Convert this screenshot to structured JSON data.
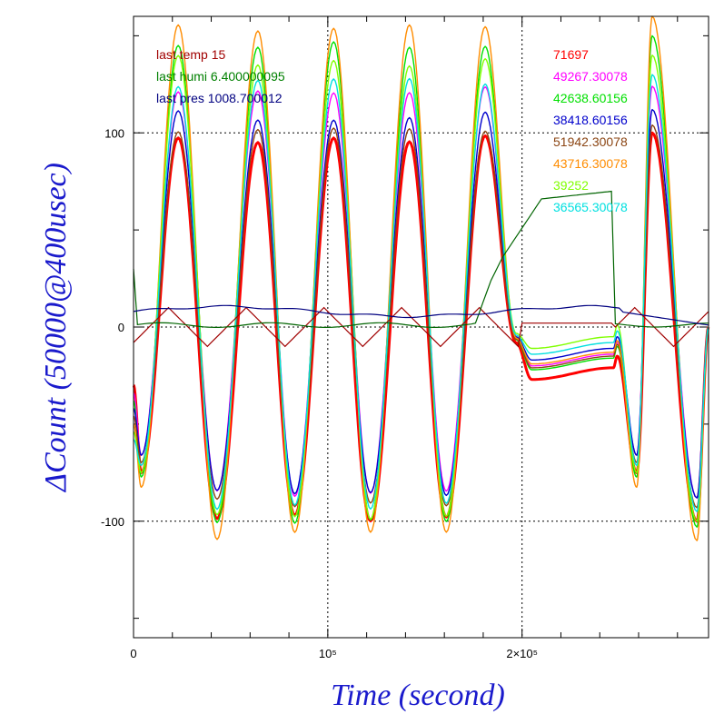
{
  "chart_data": {
    "type": "line",
    "xlabel": "Time (second)",
    "ylabel": "ΔCount (50000@400usec)",
    "xlim": [
      0,
      296000
    ],
    "ylim": [
      -160,
      160
    ],
    "x_ticks": [
      {
        "value": 0,
        "label": "0"
      },
      {
        "value": 100000,
        "label": "10⁵"
      },
      {
        "value": 200000,
        "label": "2×10⁵"
      }
    ],
    "y_ticks": [
      {
        "value": 100,
        "label": "100"
      },
      {
        "value": 0,
        "label": "0"
      },
      {
        "value": -100,
        "label": "-100"
      }
    ],
    "grid": true,
    "env_legend": [
      {
        "text": "last temp 15",
        "color": "#a00000"
      },
      {
        "text": "last humi 6.400000095",
        "color": "#008000"
      },
      {
        "text": "last pres 1008.700012",
        "color": "#000080"
      }
    ],
    "series": [
      {
        "name": "71697",
        "color": "#ff0000",
        "peak": 100,
        "trough": -100,
        "gap_low": -27
      },
      {
        "name": "49267.30078",
        "color": "#ff00ff",
        "peak": 124,
        "trough": -88,
        "gap_low": -20
      },
      {
        "name": "42638.60156",
        "color": "#00e000",
        "peak": 150,
        "trough": -103,
        "gap_low": -22
      },
      {
        "name": "38418.60156",
        "color": "#0000cc",
        "peak": 112,
        "trough": -88,
        "gap_low": -17
      },
      {
        "name": "51942.30078",
        "color": "#8b4513",
        "peak": 104,
        "trough": -93,
        "gap_low": -21
      },
      {
        "name": "43716.30078",
        "color": "#ff8c00",
        "peak": 160,
        "trough": -110,
        "gap_low": -19
      },
      {
        "name": "39252",
        "color": "#80ff00",
        "peak": 140,
        "trough": -100,
        "gap_low": -11
      },
      {
        "name": "36565.30078",
        "color": "#00e0e0",
        "peak": 130,
        "trough": -95,
        "gap_low": -14
      }
    ],
    "cycle_peaks_x": [
      23000,
      64000,
      103000,
      142000,
      181000,
      267000
    ],
    "cycle_troughs_x": [
      43000,
      83000,
      122000,
      161000,
      259000,
      290000
    ],
    "gap_range_x": [
      197000,
      248000
    ],
    "environment_series": [
      {
        "name": "last temp 15",
        "color": "#a00000",
        "kind": "triangle",
        "amplitude": 10
      },
      {
        "name": "last humi 6.400000095",
        "color": "#006400",
        "kind": "humidity"
      },
      {
        "name": "last pres 1008.700012",
        "color": "#000080",
        "kind": "pressure"
      }
    ]
  }
}
